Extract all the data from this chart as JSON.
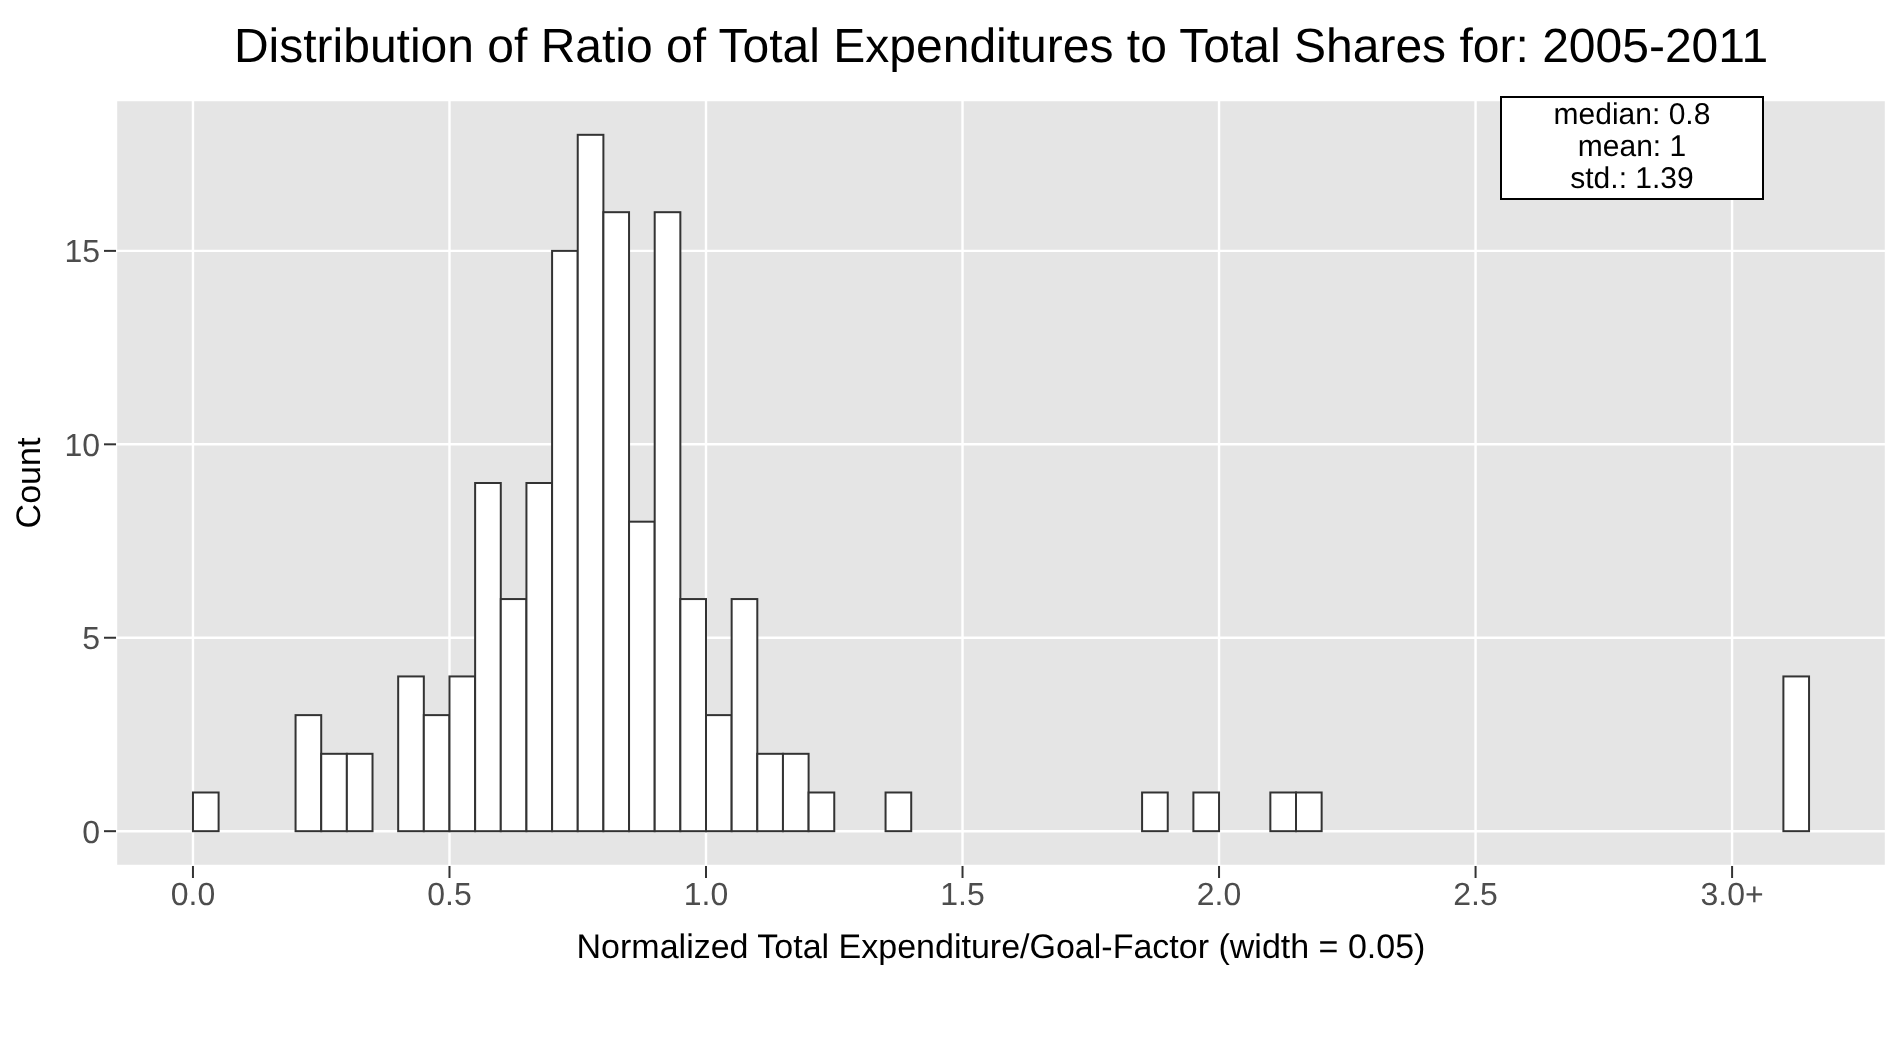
{
  "chart_data": {
    "type": "histogram",
    "title": "Distribution of Ratio of Total Expenditures to Total Shares for: 2005-2011",
    "xlabel": "Normalized Total Expenditure/Goal-Factor (width = 0.05)",
    "ylabel": "Count",
    "bins": [
      0,
      0.05,
      0.1,
      0.15,
      0.2,
      0.25,
      0.3,
      0.35,
      0.4,
      0.45,
      0.5,
      0.55,
      0.6,
      0.65,
      0.7,
      0.75,
      0.8,
      0.85,
      0.9,
      0.95,
      1,
      1.05,
      1.1,
      1.15,
      1.2,
      1.25,
      1.3,
      1.35,
      1.4,
      1.45,
      1.5,
      1.55,
      1.6,
      1.65,
      1.7,
      1.75,
      1.8,
      1.85,
      1.9,
      1.95,
      2,
      2.05,
      2.1,
      2.15,
      2.2,
      2.25,
      2.3,
      2.35,
      2.4,
      2.45,
      2.5,
      2.55,
      2.6,
      2.65,
      2.7,
      2.75,
      2.8,
      2.85,
      2.9,
      2.95,
      3,
      3.05,
      3.1,
      3.15
    ],
    "values": [
      1,
      0,
      0,
      0,
      3,
      2,
      2,
      0,
      4,
      3,
      4,
      9,
      6,
      9,
      15,
      18,
      16,
      8,
      16,
      6,
      3,
      6,
      2,
      2,
      1,
      0,
      0,
      1,
      0,
      0,
      0,
      0,
      0,
      0,
      0,
      0,
      0,
      1,
      0,
      1,
      0,
      0,
      1,
      1,
      0,
      0,
      0,
      0,
      0,
      0,
      0,
      0,
      0,
      0,
      0,
      0,
      0,
      0,
      0,
      0,
      0,
      0,
      4
    ],
    "color": "#ffffff",
    "xlim": [
      -0.15,
      3.3
    ],
    "xticks": [
      {
        "value": 0,
        "label": "0.0"
      },
      {
        "value": 0.5,
        "label": "0.5"
      },
      {
        "value": 1,
        "label": "1.0"
      },
      {
        "value": 1.5,
        "label": "1.5"
      },
      {
        "value": 2,
        "label": "2.0"
      },
      {
        "value": 2.5,
        "label": "2.5"
      },
      {
        "value": 3,
        "label": "3.0+"
      }
    ],
    "ylim": [
      -0.9,
      18.9
    ],
    "yticks": [
      0,
      5,
      10,
      15
    ],
    "grid": true,
    "annotations": [
      "median: 0.8",
      "mean: 1",
      "std.: 1.39"
    ]
  }
}
